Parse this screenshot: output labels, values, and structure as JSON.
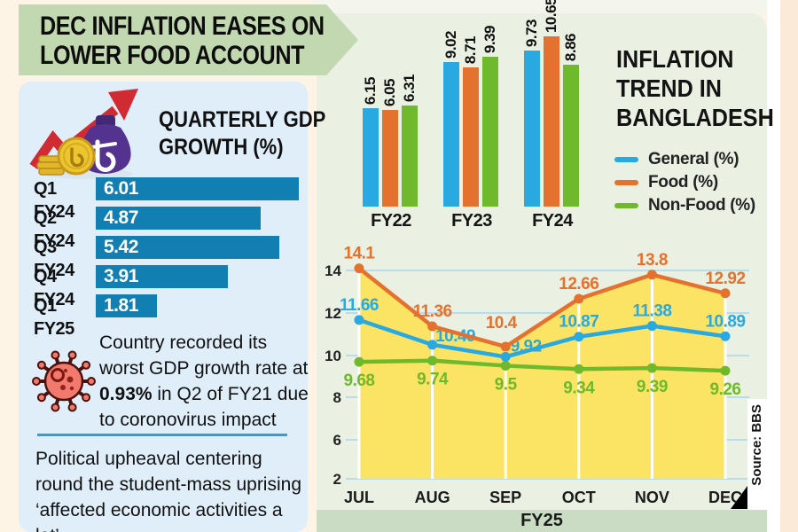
{
  "banner": {
    "line1": "DEC INFLATION EASES ON",
    "line2": "LOWER FOOD ACCOUNT"
  },
  "gdp_panel": {
    "title_line1": "QUARTERLY GDP",
    "title_line2": "GROWTH (%)",
    "note1_pre": "Country recorded its worst GDP growth rate at ",
    "note1_bold": "0.93%",
    "note1_post": " in Q2 of FY21 due to coronovirus impact",
    "note2": "Political upheaval centering round the student-mass uprising ‘affected economic activities a lot’"
  },
  "inflation_panel": {
    "title_line1": "INFLATION",
    "title_line2": "TREND IN",
    "title_line3": "BANGLADESH",
    "legend": [
      {
        "label": "General (%)",
        "color": "#29a9e1"
      },
      {
        "label": "Food (%)",
        "color": "#e4722e"
      },
      {
        "label": "Non-Food (%)",
        "color": "#6fba2c"
      }
    ],
    "fy_label": "FY25",
    "source": "Source: BBS"
  },
  "chart_data": [
    {
      "type": "bar",
      "orientation": "horizontal",
      "title": "QUARTERLY GDP GROWTH (%)",
      "categories": [
        "Q1 FY24",
        "Q2 FY24",
        "Q3 FY24",
        "Q4 FY24",
        "Q1 FY25"
      ],
      "values": [
        6.01,
        4.87,
        5.42,
        3.91,
        1.81
      ],
      "bar_color": "#127fb2"
    },
    {
      "type": "bar",
      "title": "Inflation trend in Bangladesh - annual",
      "categories": [
        "FY22",
        "FY23",
        "FY24"
      ],
      "series": [
        {
          "name": "General (%)",
          "color": "#29a9e1",
          "values": [
            6.15,
            9.02,
            9.73
          ]
        },
        {
          "name": "Food (%)",
          "color": "#e4722e",
          "values": [
            6.05,
            8.71,
            10.65
          ]
        },
        {
          "name": "Non-Food (%)",
          "color": "#6fba2c",
          "values": [
            6.31,
            9.39,
            8.86
          ]
        }
      ]
    },
    {
      "type": "line",
      "title": "Inflation trend in Bangladesh - monthly",
      "x": [
        "JUL",
        "AUG",
        "SEP",
        "OCT",
        "NOV",
        "DEC"
      ],
      "xlabel": "FY25",
      "yticks": [
        14,
        12,
        10,
        8,
        6,
        2
      ],
      "grid": true,
      "area_fill_under": "Food (%)",
      "area_color": "#fbe364",
      "gridline_color": "#a9d6ec",
      "series": [
        {
          "name": "General (%)",
          "color": "#29a9e1",
          "values": [
            11.66,
            10.49,
            9.92,
            10.87,
            11.38,
            10.89
          ]
        },
        {
          "name": "Food (%)",
          "color": "#e4722e",
          "values": [
            14.1,
            11.36,
            10.4,
            12.66,
            13.8,
            12.92
          ]
        },
        {
          "name": "Non-Food (%)",
          "color": "#6fba2c",
          "values": [
            9.68,
            9.74,
            9.5,
            9.34,
            9.39,
            9.26
          ]
        }
      ]
    }
  ]
}
